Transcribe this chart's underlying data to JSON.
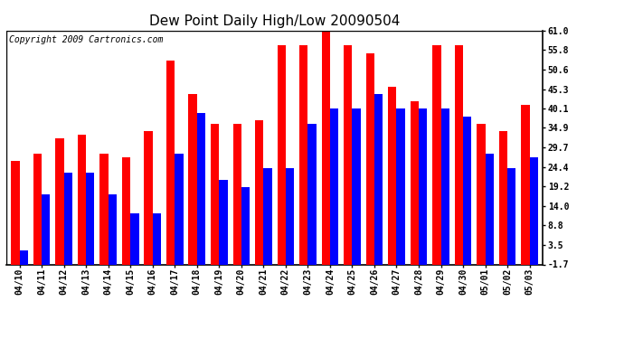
{
  "title": "Dew Point Daily High/Low 20090504",
  "copyright": "Copyright 2009 Cartronics.com",
  "dates": [
    "04/10",
    "04/11",
    "04/12",
    "04/13",
    "04/14",
    "04/15",
    "04/16",
    "04/17",
    "04/18",
    "04/19",
    "04/20",
    "04/21",
    "04/22",
    "04/23",
    "04/24",
    "04/25",
    "04/26",
    "04/27",
    "04/28",
    "04/29",
    "04/30",
    "05/01",
    "05/02",
    "05/03"
  ],
  "highs": [
    26,
    28,
    32,
    33,
    28,
    27,
    34,
    53,
    44,
    36,
    36,
    37,
    57,
    57,
    62,
    57,
    55,
    46,
    42,
    57,
    57,
    36,
    34,
    41
  ],
  "lows": [
    2,
    17,
    23,
    23,
    17,
    12,
    12,
    28,
    39,
    21,
    19,
    24,
    24,
    36,
    40,
    40,
    44,
    40,
    40,
    40,
    38,
    28,
    24,
    27
  ],
  "high_color": "#ff0000",
  "low_color": "#0000ff",
  "bg_color": "#ffffff",
  "yticks": [
    -1.7,
    3.5,
    8.8,
    14.0,
    19.2,
    24.4,
    29.7,
    34.9,
    40.1,
    45.3,
    50.6,
    55.8,
    61.0
  ],
  "ymin": -1.7,
  "ymax": 61.0,
  "bar_width": 0.38,
  "grid_color": "#bbbbbb",
  "title_fontsize": 11,
  "tick_fontsize": 7,
  "copyright_fontsize": 7
}
